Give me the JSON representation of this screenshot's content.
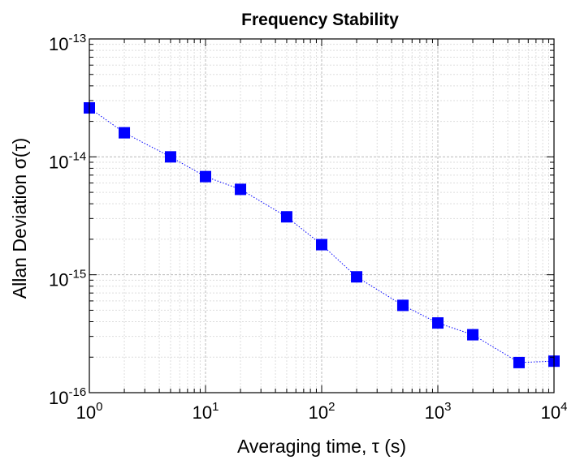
{
  "chart_data": {
    "type": "scatter",
    "title": "Frequency Stability",
    "xlabel": "Averaging time, τ (s)",
    "ylabel": "Allan Deviation σ(τ)",
    "xscale": "log",
    "yscale": "log",
    "xlim": [
      1,
      10000
    ],
    "ylim": [
      1e-16,
      1e-13
    ],
    "grid": true,
    "x_ticks": [
      {
        "value": 1,
        "base": "10",
        "exp": "0"
      },
      {
        "value": 10,
        "base": "10",
        "exp": "1"
      },
      {
        "value": 100,
        "base": "10",
        "exp": "2"
      },
      {
        "value": 1000,
        "base": "10",
        "exp": "3"
      },
      {
        "value": 10000,
        "base": "10",
        "exp": "4"
      }
    ],
    "y_ticks": [
      {
        "value": 1e-16,
        "base": "10",
        "exp": "-16"
      },
      {
        "value": 1e-15,
        "base": "10",
        "exp": "-15"
      },
      {
        "value": 1e-14,
        "base": "10",
        "exp": "-14"
      },
      {
        "value": 1e-13,
        "base": "10",
        "exp": "-13"
      }
    ],
    "series": [
      {
        "marker": "square",
        "color": "#0000ff",
        "line_style": "dotted",
        "points": [
          {
            "x": 1,
            "y": 2.6e-14
          },
          {
            "x": 2,
            "y": 1.6e-14
          },
          {
            "x": 5,
            "y": 1e-14
          },
          {
            "x": 10,
            "y": 6.8e-15
          },
          {
            "x": 20,
            "y": 5.3e-15
          },
          {
            "x": 50,
            "y": 3.1e-15
          },
          {
            "x": 100,
            "y": 1.8e-15
          },
          {
            "x": 200,
            "y": 9.6e-16
          },
          {
            "x": 500,
            "y": 5.5e-16
          },
          {
            "x": 1000,
            "y": 3.9e-16
          },
          {
            "x": 2000,
            "y": 3.1e-16
          },
          {
            "x": 5000,
            "y": 1.8e-16
          },
          {
            "x": 10000,
            "y": 1.85e-16
          }
        ]
      }
    ]
  }
}
